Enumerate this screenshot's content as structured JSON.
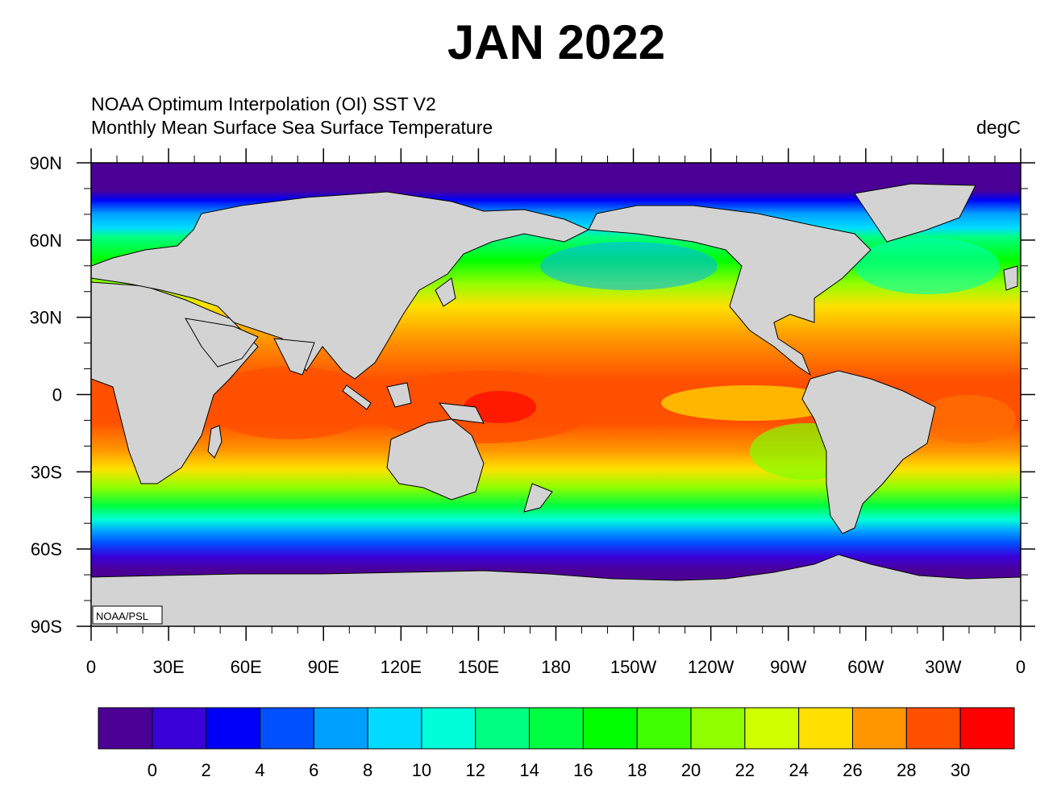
{
  "title": "JAN 2022",
  "subtitle_line1": "NOAA Optimum Interpolation (OI) SST V2",
  "subtitle_line2": "Monthly Mean  Surface Sea Surface Temperature",
  "units": "degC",
  "credit": "NOAA/PSL",
  "lat_ticks": [
    {
      "value": 90,
      "label": "90N"
    },
    {
      "value": 60,
      "label": "60N"
    },
    {
      "value": 30,
      "label": "30N"
    },
    {
      "value": 0,
      "label": "0"
    },
    {
      "value": -30,
      "label": "30S"
    },
    {
      "value": -60,
      "label": "60S"
    },
    {
      "value": -90,
      "label": "90S"
    }
  ],
  "lon_ticks": [
    {
      "value": 0,
      "label": "0"
    },
    {
      "value": 30,
      "label": "30E"
    },
    {
      "value": 60,
      "label": "60E"
    },
    {
      "value": 90,
      "label": "90E"
    },
    {
      "value": 120,
      "label": "120E"
    },
    {
      "value": 150,
      "label": "150E"
    },
    {
      "value": 180,
      "label": "180"
    },
    {
      "value": 210,
      "label": "150W"
    },
    {
      "value": 240,
      "label": "120W"
    },
    {
      "value": 270,
      "label": "90W"
    },
    {
      "value": 300,
      "label": "60W"
    },
    {
      "value": 330,
      "label": "30W"
    },
    {
      "value": 360,
      "label": "0"
    }
  ],
  "colorbar": {
    "colors": [
      "#4b0096",
      "#3a00d8",
      "#0000f8",
      "#0050ff",
      "#00a0ff",
      "#00dcff",
      "#00ffd8",
      "#00ff80",
      "#00ff40",
      "#00ff00",
      "#40ff00",
      "#90ff00",
      "#d0ff00",
      "#ffe000",
      "#ff9600",
      "#ff5000",
      "#ff0000"
    ],
    "labels": [
      "0",
      "2",
      "4",
      "6",
      "8",
      "10",
      "12",
      "14",
      "16",
      "18",
      "20",
      "22",
      "24",
      "26",
      "28",
      "30"
    ]
  },
  "land_color": "#d3d3d3"
}
